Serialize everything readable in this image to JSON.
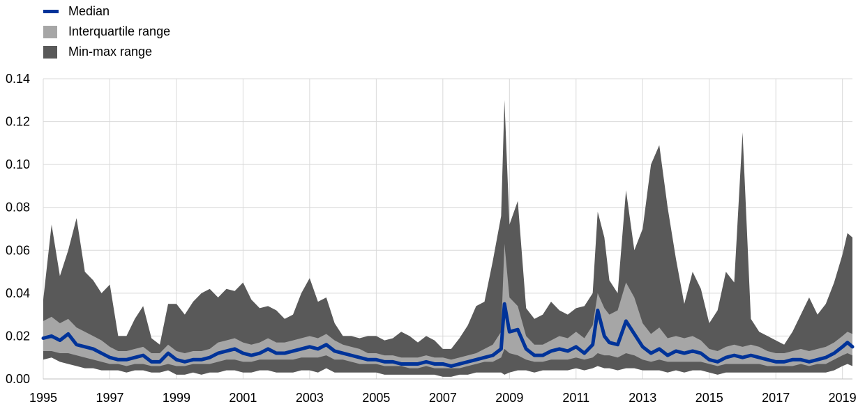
{
  "legend": {
    "median": "Median",
    "iqr": "Interquartile range",
    "minmax": "Min-max range"
  },
  "colors": {
    "median": "#003399",
    "iqr": "#a6a6a6",
    "minmax": "#595959",
    "grid": "#d9d9d9"
  },
  "chart_data": {
    "type": "area",
    "title": "",
    "xlabel": "",
    "ylabel": "",
    "xlim": [
      1995,
      2019.3
    ],
    "ylim": [
      0,
      0.14
    ],
    "grid": true,
    "legend_position": "top-left",
    "x_ticks": [
      "1995",
      "1997",
      "1999",
      "2001",
      "2003",
      "2005",
      "2007",
      "2009",
      "2011",
      "2013",
      "2015",
      "2017",
      "2019"
    ],
    "y_ticks": [
      "0.00",
      "0.02",
      "0.04",
      "0.06",
      "0.08",
      "0.10",
      "0.12",
      "0.14"
    ],
    "x": [
      1995.0,
      1995.25,
      1995.5,
      1995.75,
      1996.0,
      1996.25,
      1996.5,
      1996.75,
      1997.0,
      1997.25,
      1997.5,
      1997.75,
      1998.0,
      1998.25,
      1998.5,
      1998.75,
      1999.0,
      1999.25,
      1999.5,
      1999.75,
      2000.0,
      2000.25,
      2000.5,
      2000.75,
      2001.0,
      2001.25,
      2001.5,
      2001.75,
      2002.0,
      2002.25,
      2002.5,
      2002.75,
      2003.0,
      2003.25,
      2003.5,
      2003.75,
      2004.0,
      2004.25,
      2004.5,
      2004.75,
      2005.0,
      2005.25,
      2005.5,
      2005.75,
      2006.0,
      2006.25,
      2006.5,
      2006.75,
      2007.0,
      2007.25,
      2007.5,
      2007.75,
      2008.0,
      2008.25,
      2008.5,
      2008.75,
      2008.85,
      2009.0,
      2009.25,
      2009.5,
      2009.75,
      2010.0,
      2010.25,
      2010.5,
      2010.75,
      2011.0,
      2011.25,
      2011.5,
      2011.65,
      2011.85,
      2012.0,
      2012.25,
      2012.5,
      2012.75,
      2013.0,
      2013.25,
      2013.5,
      2013.75,
      2014.0,
      2014.25,
      2014.5,
      2014.75,
      2015.0,
      2015.25,
      2015.5,
      2015.75,
      2016.0,
      2016.25,
      2016.5,
      2016.75,
      2017.0,
      2017.25,
      2017.5,
      2017.75,
      2018.0,
      2018.25,
      2018.5,
      2018.75,
      2019.0,
      2019.15,
      2019.3
    ],
    "series": [
      {
        "name": "Median",
        "values": [
          0.019,
          0.02,
          0.018,
          0.021,
          0.016,
          0.015,
          0.014,
          0.012,
          0.01,
          0.009,
          0.009,
          0.01,
          0.011,
          0.008,
          0.008,
          0.012,
          0.009,
          0.008,
          0.009,
          0.009,
          0.01,
          0.012,
          0.013,
          0.014,
          0.012,
          0.011,
          0.012,
          0.014,
          0.012,
          0.012,
          0.013,
          0.014,
          0.015,
          0.014,
          0.016,
          0.013,
          0.012,
          0.011,
          0.01,
          0.009,
          0.009,
          0.008,
          0.008,
          0.007,
          0.007,
          0.007,
          0.008,
          0.007,
          0.007,
          0.006,
          0.007,
          0.008,
          0.009,
          0.01,
          0.011,
          0.014,
          0.035,
          0.022,
          0.023,
          0.014,
          0.011,
          0.011,
          0.013,
          0.014,
          0.013,
          0.015,
          0.012,
          0.016,
          0.032,
          0.02,
          0.017,
          0.016,
          0.027,
          0.021,
          0.015,
          0.012,
          0.014,
          0.011,
          0.013,
          0.012,
          0.013,
          0.012,
          0.009,
          0.008,
          0.01,
          0.011,
          0.01,
          0.011,
          0.01,
          0.009,
          0.008,
          0.008,
          0.009,
          0.009,
          0.008,
          0.009,
          0.01,
          0.012,
          0.015,
          0.017,
          0.015
        ]
      },
      {
        "name": "Interquartile range",
        "values_low": [
          0.013,
          0.013,
          0.012,
          0.012,
          0.011,
          0.01,
          0.009,
          0.008,
          0.007,
          0.007,
          0.006,
          0.007,
          0.007,
          0.006,
          0.006,
          0.007,
          0.006,
          0.006,
          0.007,
          0.007,
          0.007,
          0.008,
          0.009,
          0.009,
          0.008,
          0.008,
          0.009,
          0.009,
          0.009,
          0.009,
          0.009,
          0.01,
          0.01,
          0.01,
          0.011,
          0.009,
          0.009,
          0.008,
          0.007,
          0.007,
          0.007,
          0.006,
          0.006,
          0.006,
          0.005,
          0.005,
          0.006,
          0.005,
          0.005,
          0.005,
          0.005,
          0.006,
          0.007,
          0.008,
          0.008,
          0.01,
          0.014,
          0.012,
          0.011,
          0.009,
          0.008,
          0.008,
          0.009,
          0.009,
          0.009,
          0.01,
          0.009,
          0.01,
          0.012,
          0.011,
          0.011,
          0.01,
          0.012,
          0.011,
          0.009,
          0.008,
          0.009,
          0.008,
          0.008,
          0.008,
          0.008,
          0.008,
          0.007,
          0.006,
          0.007,
          0.007,
          0.007,
          0.007,
          0.007,
          0.006,
          0.006,
          0.006,
          0.006,
          0.007,
          0.006,
          0.007,
          0.007,
          0.009,
          0.011,
          0.012,
          0.011
        ],
        "values_high": [
          0.027,
          0.029,
          0.026,
          0.028,
          0.024,
          0.022,
          0.02,
          0.018,
          0.015,
          0.013,
          0.013,
          0.014,
          0.015,
          0.012,
          0.012,
          0.016,
          0.013,
          0.012,
          0.013,
          0.013,
          0.014,
          0.017,
          0.018,
          0.019,
          0.017,
          0.016,
          0.017,
          0.019,
          0.017,
          0.017,
          0.018,
          0.019,
          0.02,
          0.019,
          0.021,
          0.018,
          0.016,
          0.015,
          0.014,
          0.012,
          0.012,
          0.011,
          0.011,
          0.01,
          0.01,
          0.01,
          0.011,
          0.01,
          0.01,
          0.009,
          0.01,
          0.011,
          0.012,
          0.014,
          0.016,
          0.022,
          0.063,
          0.038,
          0.034,
          0.02,
          0.016,
          0.016,
          0.018,
          0.02,
          0.019,
          0.022,
          0.019,
          0.025,
          0.04,
          0.033,
          0.03,
          0.032,
          0.045,
          0.038,
          0.026,
          0.021,
          0.024,
          0.019,
          0.02,
          0.019,
          0.02,
          0.018,
          0.014,
          0.013,
          0.015,
          0.016,
          0.015,
          0.016,
          0.015,
          0.013,
          0.012,
          0.012,
          0.013,
          0.014,
          0.013,
          0.014,
          0.015,
          0.017,
          0.02,
          0.022,
          0.021
        ]
      },
      {
        "name": "Min-max range",
        "values_low": [
          0.009,
          0.01,
          0.008,
          0.007,
          0.006,
          0.005,
          0.005,
          0.004,
          0.004,
          0.004,
          0.003,
          0.004,
          0.004,
          0.003,
          0.003,
          0.004,
          0.002,
          0.002,
          0.003,
          0.002,
          0.003,
          0.003,
          0.004,
          0.004,
          0.003,
          0.003,
          0.004,
          0.004,
          0.003,
          0.003,
          0.003,
          0.004,
          0.004,
          0.003,
          0.005,
          0.003,
          0.003,
          0.003,
          0.003,
          0.003,
          0.003,
          0.002,
          0.002,
          0.002,
          0.002,
          0.002,
          0.002,
          0.002,
          0.001,
          0.001,
          0.002,
          0.002,
          0.003,
          0.003,
          0.003,
          0.003,
          0.002,
          0.003,
          0.004,
          0.004,
          0.003,
          0.004,
          0.004,
          0.004,
          0.004,
          0.005,
          0.004,
          0.005,
          0.006,
          0.005,
          0.005,
          0.004,
          0.005,
          0.005,
          0.004,
          0.004,
          0.004,
          0.003,
          0.004,
          0.003,
          0.004,
          0.004,
          0.003,
          0.002,
          0.003,
          0.003,
          0.003,
          0.003,
          0.003,
          0.003,
          0.003,
          0.003,
          0.003,
          0.003,
          0.003,
          0.003,
          0.003,
          0.004,
          0.006,
          0.007,
          0.006
        ],
        "values_high": [
          0.037,
          0.072,
          0.048,
          0.06,
          0.075,
          0.05,
          0.046,
          0.04,
          0.044,
          0.02,
          0.02,
          0.028,
          0.034,
          0.019,
          0.016,
          0.035,
          0.035,
          0.03,
          0.036,
          0.04,
          0.042,
          0.038,
          0.042,
          0.041,
          0.045,
          0.037,
          0.033,
          0.034,
          0.032,
          0.028,
          0.03,
          0.04,
          0.047,
          0.036,
          0.038,
          0.026,
          0.02,
          0.02,
          0.019,
          0.02,
          0.02,
          0.018,
          0.019,
          0.022,
          0.02,
          0.017,
          0.02,
          0.018,
          0.014,
          0.014,
          0.019,
          0.025,
          0.034,
          0.036,
          0.055,
          0.076,
          0.13,
          0.072,
          0.083,
          0.033,
          0.028,
          0.03,
          0.036,
          0.032,
          0.03,
          0.033,
          0.034,
          0.04,
          0.078,
          0.066,
          0.046,
          0.04,
          0.088,
          0.06,
          0.07,
          0.1,
          0.109,
          0.08,
          0.056,
          0.035,
          0.05,
          0.042,
          0.026,
          0.032,
          0.05,
          0.045,
          0.115,
          0.028,
          0.022,
          0.02,
          0.018,
          0.016,
          0.022,
          0.03,
          0.038,
          0.03,
          0.035,
          0.045,
          0.058,
          0.068,
          0.066
        ]
      }
    ]
  }
}
